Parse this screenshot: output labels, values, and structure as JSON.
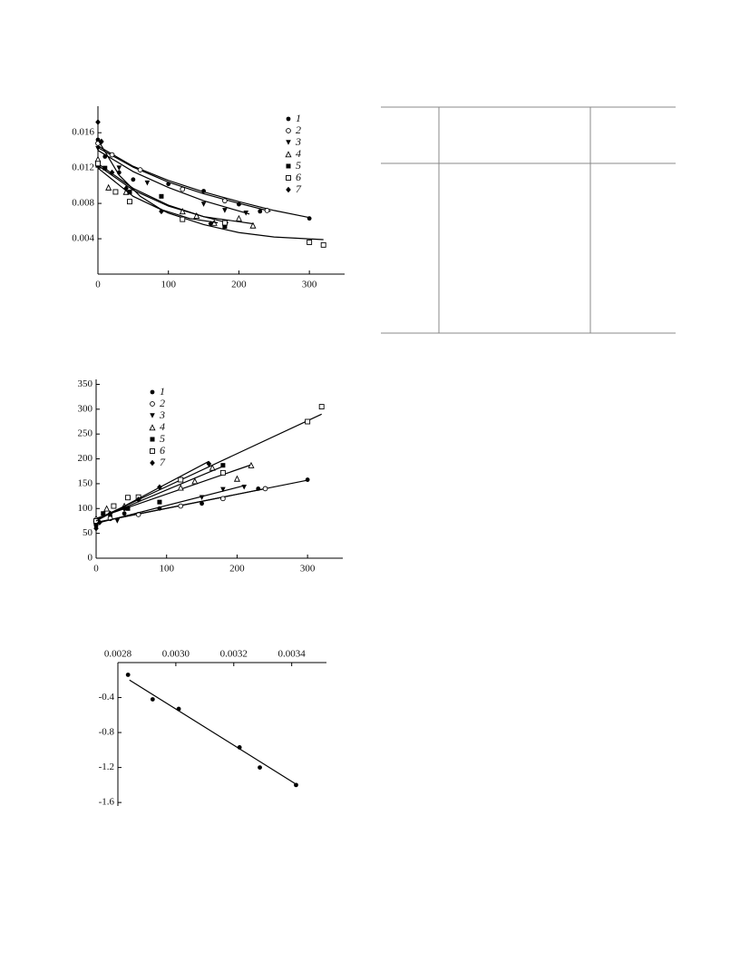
{
  "chart_data": [
    {
      "type": "scatter",
      "marker_color": "#000000",
      "x_axis_position": "bottom",
      "xlim": [
        0,
        350
      ],
      "xticks": [
        0,
        100,
        200,
        300
      ],
      "ylim": [
        0,
        0.019
      ],
      "yticks": [
        0.004,
        0.008,
        0.012,
        0.016
      ],
      "series": [
        {
          "name": "1",
          "marker": "circle-filled",
          "x": [
            0,
            10,
            30,
            50,
            100,
            150,
            200,
            230,
            300
          ],
          "values": [
            0.0152,
            0.0133,
            0.0115,
            0.0107,
            0.0102,
            0.0094,
            0.0079,
            0.0071,
            0.0063
          ],
          "fit_x": [
            0,
            50,
            100,
            150,
            200,
            250,
            300
          ],
          "fit": [
            0.0145,
            0.0122,
            0.0106,
            0.0093,
            0.0082,
            0.0072,
            0.0064
          ]
        },
        {
          "name": "2",
          "marker": "circle-open",
          "x": [
            0,
            20,
            60,
            120,
            180,
            240
          ],
          "values": [
            0.0148,
            0.0135,
            0.0118,
            0.0096,
            0.0083,
            0.0072
          ],
          "fit_x": [
            0,
            50,
            100,
            150,
            200,
            245
          ],
          "fit": [
            0.0143,
            0.0121,
            0.0104,
            0.0091,
            0.008,
            0.0071
          ]
        },
        {
          "name": "3",
          "marker": "triangle-down",
          "x": [
            0,
            30,
            70,
            150,
            180,
            210
          ],
          "values": [
            0.0142,
            0.012,
            0.0103,
            0.0079,
            0.0072,
            0.0069
          ],
          "fit_x": [
            0,
            50,
            100,
            150,
            215
          ],
          "fit": [
            0.014,
            0.0116,
            0.0098,
            0.0083,
            0.0068
          ]
        },
        {
          "name": "4",
          "marker": "triangle-up-open",
          "x": [
            0,
            15,
            40,
            120,
            140,
            165,
            200,
            220
          ],
          "values": [
            0.013,
            0.0098,
            0.0093,
            0.0071,
            0.0066,
            0.0058,
            0.0063,
            0.0055
          ],
          "fit_x": [
            0,
            50,
            100,
            150,
            220
          ],
          "fit": [
            0.0123,
            0.0095,
            0.0077,
            0.0065,
            0.0057
          ]
        },
        {
          "name": "5",
          "marker": "square-filled",
          "x": [
            0,
            10,
            45,
            90,
            180
          ],
          "values": [
            0.0123,
            0.012,
            0.0093,
            0.0088,
            0.0054
          ],
          "fit_x": [
            0,
            50,
            100,
            150,
            185
          ],
          "fit": [
            0.0125,
            0.0097,
            0.0078,
            0.0065,
            0.0058
          ]
        },
        {
          "name": "6",
          "marker": "square-open",
          "x": [
            0,
            25,
            45,
            120,
            180,
            300,
            320
          ],
          "values": [
            0.0125,
            0.0093,
            0.0082,
            0.0062,
            0.0058,
            0.0036,
            0.0033
          ],
          "fit_x": [
            0,
            50,
            100,
            150,
            200,
            250,
            320
          ],
          "fit": [
            0.012,
            0.0088,
            0.0069,
            0.0056,
            0.0047,
            0.0042,
            0.0039
          ]
        },
        {
          "name": "7",
          "marker": "diamond",
          "x": [
            0,
            5,
            20,
            40,
            90,
            160
          ],
          "values": [
            0.0172,
            0.015,
            0.0115,
            0.0097,
            0.0071,
            0.0057
          ],
          "fit_x": [
            0,
            30,
            60,
            90,
            130,
            170
          ],
          "fit": [
            0.0152,
            0.0112,
            0.0088,
            0.0073,
            0.0063,
            0.0058
          ]
        }
      ]
    },
    {
      "type": "scatter",
      "marker_color": "#000000",
      "x_axis_position": "bottom",
      "xlim": [
        0,
        350
      ],
      "xticks": [
        0,
        100,
        200,
        300
      ],
      "ylim": [
        0,
        360
      ],
      "yticks": [
        0,
        50,
        100,
        150,
        200,
        250,
        300,
        350
      ],
      "series": [
        {
          "name": "1",
          "marker": "circle-filled",
          "x": [
            0,
            20,
            40,
            90,
            150,
            230,
            300
          ],
          "values": [
            65,
            85,
            90,
            100,
            110,
            140,
            158
          ],
          "fit_x": [
            0,
            300
          ],
          "fit": [
            72,
            157
          ]
        },
        {
          "name": "2",
          "marker": "circle-open",
          "x": [
            0,
            20,
            60,
            120,
            180,
            240
          ],
          "values": [
            70,
            80,
            88,
            105,
            120,
            140
          ],
          "fit_x": [
            0,
            240
          ],
          "fit": [
            72,
            140
          ]
        },
        {
          "name": "3",
          "marker": "triangle-down",
          "x": [
            0,
            30,
            150,
            180,
            210
          ],
          "values": [
            75,
            75,
            122,
            138,
            143
          ],
          "fit_x": [
            0,
            210
          ],
          "fit": [
            70,
            146
          ]
        },
        {
          "name": "4",
          "marker": "triangle-up-open",
          "x": [
            0,
            15,
            40,
            120,
            140,
            165,
            200,
            220
          ],
          "values": [
            80,
            100,
            105,
            142,
            155,
            182,
            160,
            187
          ],
          "fit_x": [
            0,
            220
          ],
          "fit": [
            80,
            188
          ]
        },
        {
          "name": "5",
          "marker": "square-filled",
          "x": [
            0,
            10,
            45,
            90,
            180
          ],
          "values": [
            70,
            90,
            100,
            113,
            187
          ],
          "fit_x": [
            0,
            180
          ],
          "fit": [
            78,
            185
          ]
        },
        {
          "name": "6",
          "marker": "square-open",
          "x": [
            0,
            25,
            45,
            60,
            120,
            180,
            300,
            320
          ],
          "values": [
            75,
            105,
            122,
            123,
            158,
            172,
            275,
            305
          ],
          "fit_x": [
            0,
            320
          ],
          "fit": [
            78,
            290
          ]
        },
        {
          "name": "7",
          "marker": "diamond",
          "x": [
            0,
            5,
            20,
            40,
            60,
            90,
            160
          ],
          "values": [
            60,
            72,
            90,
            100,
            118,
            143,
            190
          ],
          "fit_x": [
            0,
            160
          ],
          "fit": [
            75,
            195
          ]
        }
      ]
    },
    {
      "type": "scatter",
      "marker_color": "#000000",
      "x_axis_position": "top",
      "xlim": [
        0.0028,
        0.00352
      ],
      "xticks": [
        0.0028,
        {
          "value": 0.003,
          "label": "0.0030"
        },
        0.0032,
        0.0034
      ],
      "ylim": [
        -1.64,
        0
      ],
      "yticks": [
        -0.4,
        -0.8,
        -1.2,
        -1.6
      ],
      "series": [
        {
          "marker": "circle-filled",
          "x": [
            0.002835,
            0.00292,
            0.00301,
            0.00322,
            0.00329,
            0.003415
          ],
          "values": [
            -0.14,
            -0.42,
            -0.53,
            -0.97,
            -1.2,
            -1.4
          ],
          "fit_x": [
            0.00284,
            0.00341
          ],
          "fit": [
            -0.2,
            -1.38
          ]
        }
      ]
    }
  ]
}
